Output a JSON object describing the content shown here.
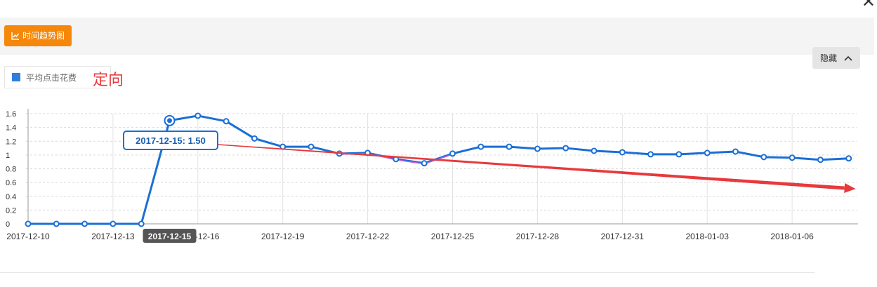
{
  "toolbar": {
    "trend_label": "时间趋势图"
  },
  "legend": {
    "label": "平均点击花费",
    "color": "#2d7fdc"
  },
  "annotation": {
    "text": "定向"
  },
  "hide_button": {
    "label": "隐藏"
  },
  "tooltip": {
    "text": "2017-12-15: 1.50"
  },
  "highlight_label": {
    "text": "2017-12-15"
  },
  "colors": {
    "line": "#1a6fd6",
    "trend_arrow": "#e8393c",
    "button_orange": "#f5870a",
    "segment_purple": "#c45fd8"
  },
  "icons": {
    "trend_icon": "line-chart-icon",
    "close_icon": "close-icon",
    "chevron": "chevron-up-icon"
  },
  "chart_data": {
    "type": "line",
    "title": "",
    "xlabel": "",
    "ylabel": "",
    "ylim": [
      0,
      1.6
    ],
    "yticks": [
      "0",
      "0.2",
      "0.4",
      "0.6",
      "0.8",
      "1",
      "1.2",
      "1.4",
      "1.6"
    ],
    "x_tick_labels": [
      "2017-12-10",
      "2017-12-13",
      "2017-12-16",
      "2017-12-19",
      "2017-12-22",
      "2017-12-25",
      "2017-12-28",
      "2017-12-31",
      "2018-01-03",
      "2018-01-06"
    ],
    "x": [
      "2017-12-10",
      "2017-12-11",
      "2017-12-12",
      "2017-12-13",
      "2017-12-14",
      "2017-12-15",
      "2017-12-16",
      "2017-12-17",
      "2017-12-18",
      "2017-12-19",
      "2017-12-20",
      "2017-12-21",
      "2017-12-22",
      "2017-12-23",
      "2017-12-24",
      "2017-12-25",
      "2017-12-26",
      "2017-12-27",
      "2017-12-28",
      "2017-12-29",
      "2017-12-30",
      "2017-12-31",
      "2018-01-01",
      "2018-01-02",
      "2018-01-03",
      "2018-01-04",
      "2018-01-05",
      "2018-01-06",
      "2018-01-07",
      "2018-01-08"
    ],
    "series": [
      {
        "name": "平均点击花费",
        "values": [
          0,
          0,
          0,
          0,
          0,
          1.5,
          1.57,
          1.49,
          1.24,
          1.12,
          1.12,
          1.02,
          1.03,
          0.94,
          0.88,
          1.02,
          1.12,
          1.12,
          1.09,
          1.1,
          1.06,
          1.04,
          1.01,
          1.01,
          1.03,
          1.05,
          0.97,
          0.96,
          0.93,
          0.95
        ]
      }
    ],
    "highlight_index": 5,
    "grid": true,
    "legend_position": "top-left",
    "trend_arrow": {
      "from": [
        "2017-12-15",
        1.2
      ],
      "to": [
        "2018-01-08",
        0.52
      ]
    }
  }
}
